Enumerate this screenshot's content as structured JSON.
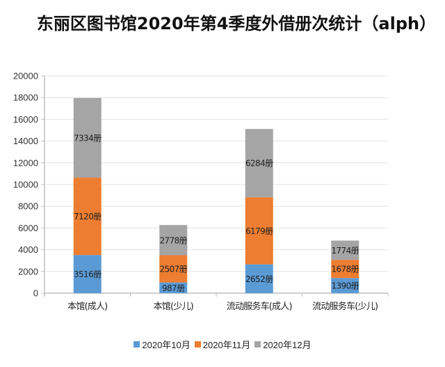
{
  "chart_data": {
    "type": "bar",
    "stacked": true,
    "title": "东丽区图书馆2020年第4季度外借册次统计（alph）",
    "xlabel": "",
    "ylabel": "",
    "ylim": [
      0,
      20000
    ],
    "yticks": [
      0,
      2000,
      4000,
      6000,
      8000,
      10000,
      12000,
      14000,
      16000,
      18000,
      20000
    ],
    "grid": true,
    "legend_position": "bottom",
    "value_suffix": "册",
    "categories": [
      "本馆(成人)",
      "本馆(少儿)",
      "流动服务车(成人)",
      "流动服务车(少儿)"
    ],
    "series": [
      {
        "name": "2020年10月",
        "color": "#5B9BD5",
        "values": [
          3516,
          987,
          2652,
          1390
        ]
      },
      {
        "name": "2020年11月",
        "color": "#ED7D31",
        "values": [
          7120,
          2507,
          6179,
          1678
        ]
      },
      {
        "name": "2020年12月",
        "color": "#A5A5A5",
        "values": [
          7334,
          2778,
          6284,
          1774
        ]
      }
    ]
  }
}
